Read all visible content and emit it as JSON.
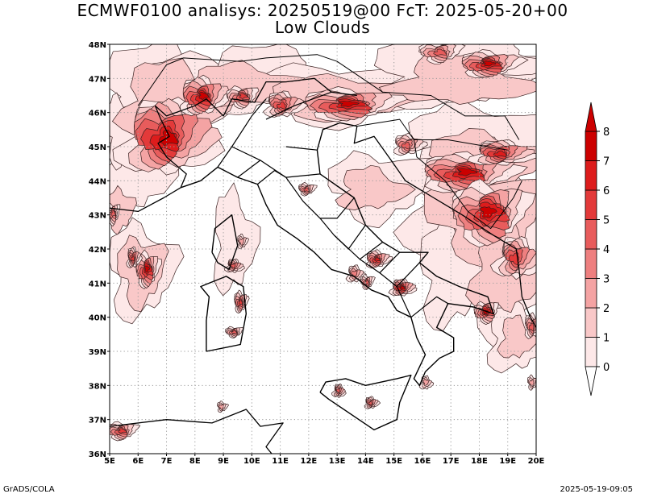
{
  "title_line1": "ECMWF0100 analisys: 20250519@00 FcT: 2025-05-20+00",
  "title_line2": "Low Clouds",
  "footer_left": "GrADS/COLA",
  "footer_right": "2025-05-19-09:05",
  "map": {
    "lon_range": [
      5,
      20
    ],
    "lat_range": [
      36,
      48
    ],
    "lon_ticks": [
      "5E",
      "6E",
      "7E",
      "8E",
      "9E",
      "10E",
      "11E",
      "12E",
      "13E",
      "14E",
      "15E",
      "16E",
      "17E",
      "18E",
      "19E",
      "20E"
    ],
    "lat_ticks": [
      "36N",
      "37N",
      "38N",
      "39N",
      "40N",
      "41N",
      "42N",
      "43N",
      "44N",
      "45N",
      "46N",
      "47N",
      "48N"
    ],
    "grid": "dotted"
  },
  "colorbar": {
    "levels": [
      "0",
      "1",
      "2",
      "3",
      "4",
      "5",
      "6",
      "7",
      "8"
    ],
    "colors": [
      "#fde8e8",
      "#f9c8c8",
      "#f4a3a3",
      "#ee7f7f",
      "#e85c5c",
      "#e33a3a",
      "#dd1c1c",
      "#cc0000"
    ]
  },
  "colors": {
    "outline": "#000000",
    "contour": "#3a2020"
  }
}
